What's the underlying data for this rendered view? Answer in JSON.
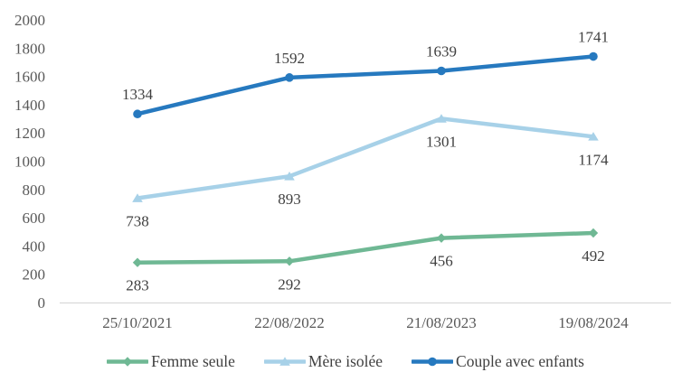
{
  "chart_data": {
    "type": "line",
    "title": "",
    "categories": [
      "25/10/2021",
      "22/08/2022",
      "21/08/2023",
      "19/08/2024"
    ],
    "series": [
      {
        "name": "Femme seule",
        "values": [
          283,
          292,
          456,
          492
        ],
        "color": "#6FB894",
        "marker": "diamond",
        "label_position": "below"
      },
      {
        "name": "Mère isolée",
        "values": [
          738,
          893,
          1301,
          1174
        ],
        "color": "#A7D1E8",
        "marker": "triangle",
        "label_position": "below"
      },
      {
        "name": "Couple avec enfants",
        "values": [
          1334,
          1592,
          1639,
          1741
        ],
        "color": "#2679BF",
        "marker": "circle",
        "label_position": "above"
      }
    ],
    "ylim": [
      0,
      2000
    ],
    "yticks": [
      0,
      200,
      400,
      600,
      800,
      1000,
      1200,
      1400,
      1600,
      1800,
      2000
    ],
    "grid": false,
    "data_labels": true,
    "legend_position": "bottom",
    "colors": {
      "axis_line": "#D9D9D9",
      "tick_text": "#595959",
      "data_label_text": "#404040",
      "legend_text": "#3F3F3F",
      "background": "#FFFFFF"
    }
  }
}
